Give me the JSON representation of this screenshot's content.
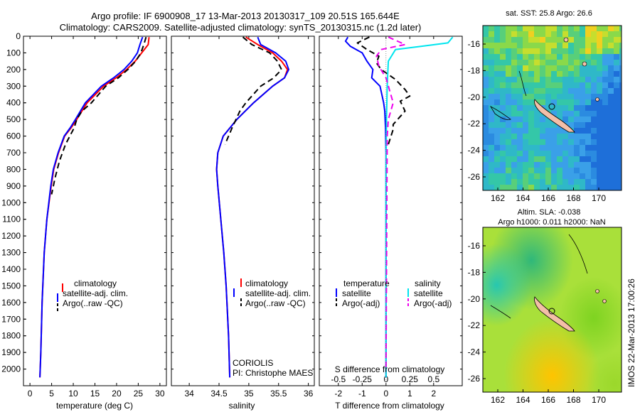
{
  "header": {
    "line1": "Argo profile: IF 6900908_17 13-Mar-2013 20130317_109 20.51S 165.644E",
    "line2": "Climatology: CARS2009. Satellite-adjusted climatology: synTS_20130315.nc (1.2d later)"
  },
  "colors": {
    "climatology": "#ff0000",
    "satellite": "#0000ff",
    "argo": "#000000",
    "salinity_sat": "#00e5ee",
    "salinity_argo": "#ee00ee"
  },
  "chart_data": [
    {
      "id": "temperature",
      "type": "line",
      "xlabel": "temperature (deg C)",
      "ylabel": "",
      "xlim": [
        -1.5,
        31.5
      ],
      "ylim": [
        2100,
        0
      ],
      "xticks": [
        0,
        5,
        10,
        15,
        20,
        25,
        30
      ],
      "yticks": [
        0,
        100,
        200,
        300,
        400,
        500,
        600,
        700,
        800,
        900,
        1000,
        1100,
        1200,
        1300,
        1400,
        1500,
        1600,
        1700,
        1800,
        1900,
        2000
      ],
      "legend": [
        "climatology",
        "satellite-adj. clim.",
        "Argo(..raw -QC)"
      ],
      "series": [
        {
          "name": "climatology",
          "color": "climatology",
          "dash": "",
          "x": [
            27.5,
            27.3,
            25.8,
            24.3,
            22.3,
            19.9,
            17.0,
            13.2,
            10.8,
            9.5,
            8.0,
            6.6,
            5.5,
            4.9,
            3.9,
            3.3,
            2.8,
            2.5,
            2.3
          ],
          "y": [
            5,
            50,
            100,
            150,
            200,
            250,
            300,
            400,
            500,
            550,
            600,
            700,
            800,
            900,
            1100,
            1300,
            1600,
            1900,
            2050
          ]
        },
        {
          "name": "satellite-adj. clim.",
          "color": "satellite",
          "dash": "",
          "x": [
            26.0,
            25.4,
            24.8,
            23.5,
            21.7,
            19.3,
            16.5,
            12.8,
            10.5,
            9.3,
            7.9,
            6.5,
            5.4,
            4.8,
            3.9,
            3.3,
            2.8,
            2.5,
            2.3
          ],
          "y": [
            5,
            50,
            100,
            150,
            200,
            250,
            300,
            400,
            500,
            550,
            600,
            700,
            800,
            900,
            1100,
            1300,
            1600,
            1900,
            2050
          ]
        },
        {
          "name": "Argo(..raw -QC)",
          "color": "argo",
          "dash": "8,5",
          "x": [
            26.8,
            26.3,
            25.6,
            24.4,
            22.6,
            20.4,
            17.5,
            14.2,
            12.0,
            10.8,
            10.2,
            8.2,
            6.8,
            5.8,
            5.0
          ],
          "y": [
            5,
            50,
            100,
            150,
            200,
            250,
            300,
            400,
            450,
            500,
            550,
            650,
            750,
            850,
            950
          ]
        }
      ],
      "annotations": []
    },
    {
      "id": "salinity",
      "type": "line",
      "xlabel": "salinity",
      "ylabel": "",
      "xlim": [
        33.7,
        36.1
      ],
      "ylim": [
        2100,
        0
      ],
      "xticks": [
        34,
        34.5,
        35,
        35.5,
        36
      ],
      "yticks": [],
      "legend": [
        "climatology",
        "satellite-adj. clim.",
        "Argo(..raw -QC)"
      ],
      "series": [
        {
          "name": "climatology",
          "color": "climatology",
          "dash": "",
          "x": [
            34.95,
            35.15,
            35.4,
            35.55,
            35.65,
            35.6,
            35.4,
            35.08,
            34.8,
            34.57,
            34.48,
            34.46,
            34.48,
            34.53,
            34.58,
            34.62,
            34.66,
            34.68
          ],
          "y": [
            5,
            50,
            100,
            150,
            200,
            250,
            300,
            400,
            500,
            600,
            700,
            800,
            900,
            1100,
            1300,
            1500,
            1800,
            2050
          ]
        },
        {
          "name": "satellite-adj. clim.",
          "color": "satellite",
          "dash": "",
          "x": [
            35.15,
            35.2,
            35.45,
            35.62,
            35.67,
            35.6,
            35.4,
            35.08,
            34.8,
            34.57,
            34.48,
            34.46,
            34.48,
            34.53,
            34.58,
            34.62,
            34.66,
            34.68
          ],
          "y": [
            5,
            50,
            100,
            150,
            200,
            250,
            300,
            400,
            500,
            600,
            700,
            800,
            900,
            1100,
            1300,
            1500,
            1800,
            2050
          ]
        },
        {
          "name": "Argo(..raw -QC)",
          "color": "argo",
          "dash": "8,5",
          "x": [
            34.9,
            35.05,
            35.35,
            35.48,
            35.55,
            35.42,
            35.2,
            34.95,
            34.85,
            34.72,
            34.6
          ],
          "y": [
            5,
            50,
            100,
            150,
            200,
            250,
            300,
            400,
            450,
            550,
            650
          ]
        }
      ],
      "annotations": [
        "CORIOLIS",
        "PI: Christophe MAES"
      ]
    },
    {
      "id": "difference",
      "type": "line",
      "xlabel": "T difference from climatology",
      "top_xlabel": "S difference from climatology",
      "xlim": [
        -2.8,
        3.2
      ],
      "ylim": [
        2100,
        0
      ],
      "xticks": [
        -2,
        -1,
        0,
        1,
        2
      ],
      "top_ticks": [
        "-0.5",
        "-0.25",
        "0",
        "0.25",
        "0.5"
      ],
      "top_tick_x": [
        -2,
        -1,
        0,
        1,
        2
      ],
      "yticks": [],
      "legend_headers": [
        "temperature",
        "salinity"
      ],
      "legend": [
        "satellite",
        "Argo(-adj)",
        "satellite",
        "Argo(-adj)"
      ],
      "series": [
        {
          "name": "satellite",
          "group": "temperature",
          "color": "satellite",
          "dash": "",
          "x": [
            -1.6,
            -1.7,
            -1.5,
            -1.0,
            -0.8,
            -0.55,
            -0.6,
            -0.25,
            -0.1,
            -0.05,
            -0.02,
            0.0,
            0.0,
            0.0
          ],
          "y": [
            5,
            30,
            60,
            100,
            150,
            200,
            250,
            300,
            400,
            450,
            550,
            700,
            1200,
            2050
          ]
        },
        {
          "name": "Argo(-adj)",
          "group": "temperature",
          "color": "argo",
          "dash": "8,5",
          "x": [
            -0.7,
            -1.2,
            -0.8,
            -0.3,
            -0.4,
            -0.2,
            0.4,
            0.8,
            1.0,
            0.6,
            0.8,
            0.3,
            0.3,
            0.1
          ],
          "y": [
            5,
            40,
            80,
            120,
            160,
            200,
            260,
            320,
            360,
            390,
            450,
            530,
            560,
            650
          ]
        },
        {
          "name": "satellite",
          "group": "salinity",
          "color": "salinity_sat",
          "dash": "",
          "x": [
            2.8,
            2.6,
            1.5,
            0.4,
            0.1,
            0.05,
            0.02,
            0.0,
            0.0
          ],
          "y": [
            5,
            40,
            60,
            80,
            150,
            300,
            500,
            800,
            2050
          ]
        },
        {
          "name": "Argo(-adj)",
          "group": "salinity",
          "color": "salinity_argo",
          "dash": "8,5",
          "x": [
            0.1,
            0.8,
            -0.2,
            -0.4,
            -0.3,
            0.0,
            0.3,
            0.2,
            0.1,
            0.05,
            0.0
          ],
          "y": [
            5,
            50,
            80,
            120,
            180,
            250,
            400,
            450,
            500,
            600,
            2000
          ]
        }
      ],
      "annotations": []
    }
  ],
  "maps": [
    {
      "title": "sat. SST: 25.8 Argo: 26.6",
      "xticks": [
        "162",
        "164",
        "166",
        "168",
        "170"
      ],
      "yticks": [
        "-16",
        "-18",
        "-20",
        "-22",
        "-24",
        "-26"
      ]
    },
    {
      "title": "Altim. SLA: -0.038",
      "title2": "Argo h1000: 0.011 h2000: NaN",
      "xticks": [
        "162",
        "164",
        "166",
        "168",
        "170"
      ],
      "yticks": [
        "-16",
        "-18",
        "-20",
        "-22",
        "-24",
        "-26"
      ]
    }
  ],
  "credit": "IMOS 22-Mar-2013 17:00:26"
}
